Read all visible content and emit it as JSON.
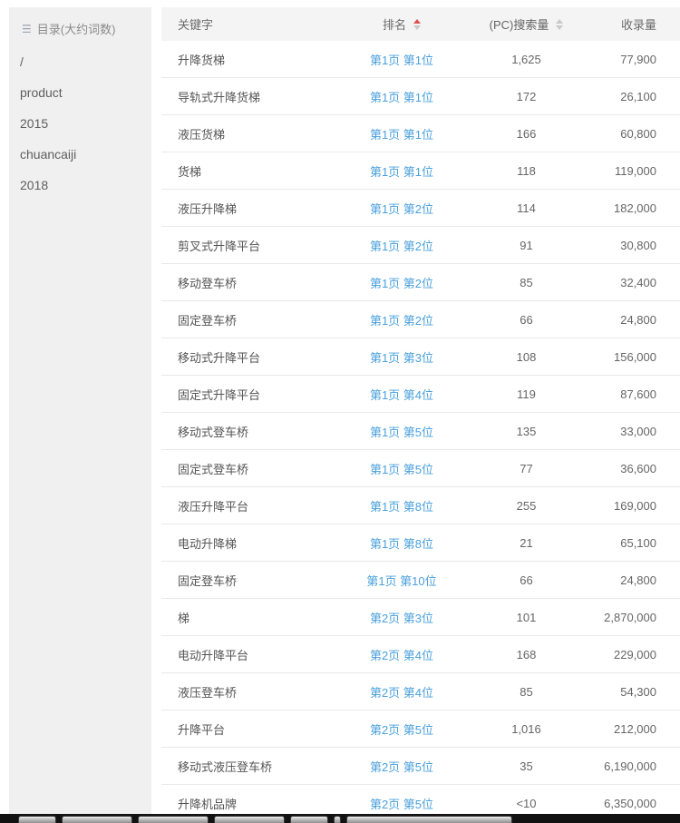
{
  "sidebar": {
    "title": "目录(大约词数)",
    "items": [
      "/",
      "product",
      "2015",
      "chuancaiji",
      "2018"
    ]
  },
  "table": {
    "columns": {
      "keyword": "关键字",
      "rank": "排名",
      "search": "(PC)搜索量",
      "index": "收录量"
    },
    "sort": {
      "active_column": "rank",
      "direction": "asc"
    },
    "rows": [
      {
        "keyword": "升降货梯",
        "rank": "第1页 第1位",
        "search": "1,625",
        "index": "77,900"
      },
      {
        "keyword": "导轨式升降货梯",
        "rank": "第1页 第1位",
        "search": "172",
        "index": "26,100"
      },
      {
        "keyword": "液压货梯",
        "rank": "第1页 第1位",
        "search": "166",
        "index": "60,800"
      },
      {
        "keyword": "货梯",
        "rank": "第1页 第1位",
        "search": "118",
        "index": "119,000"
      },
      {
        "keyword": "液压升降梯",
        "rank": "第1页 第2位",
        "search": "114",
        "index": "182,000"
      },
      {
        "keyword": "剪叉式升降平台",
        "rank": "第1页 第2位",
        "search": "91",
        "index": "30,800"
      },
      {
        "keyword": "移动登车桥",
        "rank": "第1页 第2位",
        "search": "85",
        "index": "32,400"
      },
      {
        "keyword": "固定登车桥",
        "rank": "第1页 第2位",
        "search": "66",
        "index": "24,800"
      },
      {
        "keyword": "移动式升降平台",
        "rank": "第1页 第3位",
        "search": "108",
        "index": "156,000"
      },
      {
        "keyword": "固定式升降平台",
        "rank": "第1页 第4位",
        "search": "119",
        "index": "87,600"
      },
      {
        "keyword": "移动式登车桥",
        "rank": "第1页 第5位",
        "search": "135",
        "index": "33,000"
      },
      {
        "keyword": "固定式登车桥",
        "rank": "第1页 第5位",
        "search": "77",
        "index": "36,600"
      },
      {
        "keyword": "液压升降平台",
        "rank": "第1页 第8位",
        "search": "255",
        "index": "169,000"
      },
      {
        "keyword": "电动升降梯",
        "rank": "第1页 第8位",
        "search": "21",
        "index": "65,100"
      },
      {
        "keyword": "固定登车桥",
        "rank": "第1页 第10位",
        "search": "66",
        "index": "24,800"
      },
      {
        "keyword": "梯",
        "rank": "第2页 第3位",
        "search": "101",
        "index": "2,870,000"
      },
      {
        "keyword": "电动升降平台",
        "rank": "第2页 第4位",
        "search": "168",
        "index": "229,000"
      },
      {
        "keyword": "液压登车桥",
        "rank": "第2页 第4位",
        "search": "85",
        "index": "54,300"
      },
      {
        "keyword": "升降平台",
        "rank": "第2页 第5位",
        "search": "1,016",
        "index": "212,000"
      },
      {
        "keyword": "移动式液压登车桥",
        "rank": "第2页 第5位",
        "search": "35",
        "index": "6,190,000"
      },
      {
        "keyword": "升降机品牌",
        "rank": "第2页 第5位",
        "search": "<10",
        "index": "6,350,000"
      }
    ]
  },
  "colors": {
    "link_blue": "#4aa0dc",
    "sort_active_red": "#e04f4f",
    "sort_inactive_gray": "#c9c9c9",
    "sidebar_bg": "#f0f0f0",
    "header_bg": "#f4f4f4",
    "row_border": "#e9e9e9",
    "taskbar_bg": "#121212"
  }
}
